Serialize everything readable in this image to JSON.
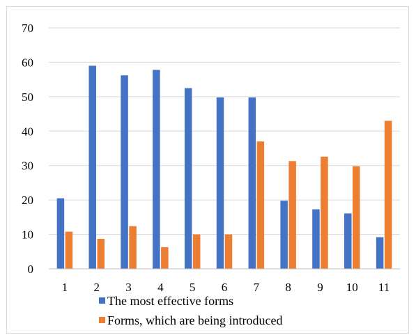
{
  "chart_data": {
    "type": "bar",
    "categories": [
      "1",
      "2",
      "3",
      "4",
      "5",
      "6",
      "7",
      "8",
      "9",
      "10",
      "11"
    ],
    "series": [
      {
        "name": "The most effective forms",
        "color": "#4472C4",
        "values": [
          20.5,
          59,
          56.2,
          57.8,
          52.5,
          49.8,
          49.8,
          19.8,
          17.3,
          16.1,
          9.2
        ]
      },
      {
        "name": "Forms, which are being introduced",
        "color": "#ED7D31",
        "values": [
          10.8,
          8.7,
          12.4,
          6.3,
          10,
          10,
          37,
          31.3,
          32.6,
          29.8,
          43
        ]
      }
    ],
    "ylim": [
      0,
      70
    ],
    "yticks": [
      0,
      10,
      20,
      30,
      40,
      50,
      60,
      70
    ],
    "grid": true,
    "legend_position": "bottom",
    "gridline_color": "#d9d9d9",
    "axis_color": "#bfbfbf"
  }
}
